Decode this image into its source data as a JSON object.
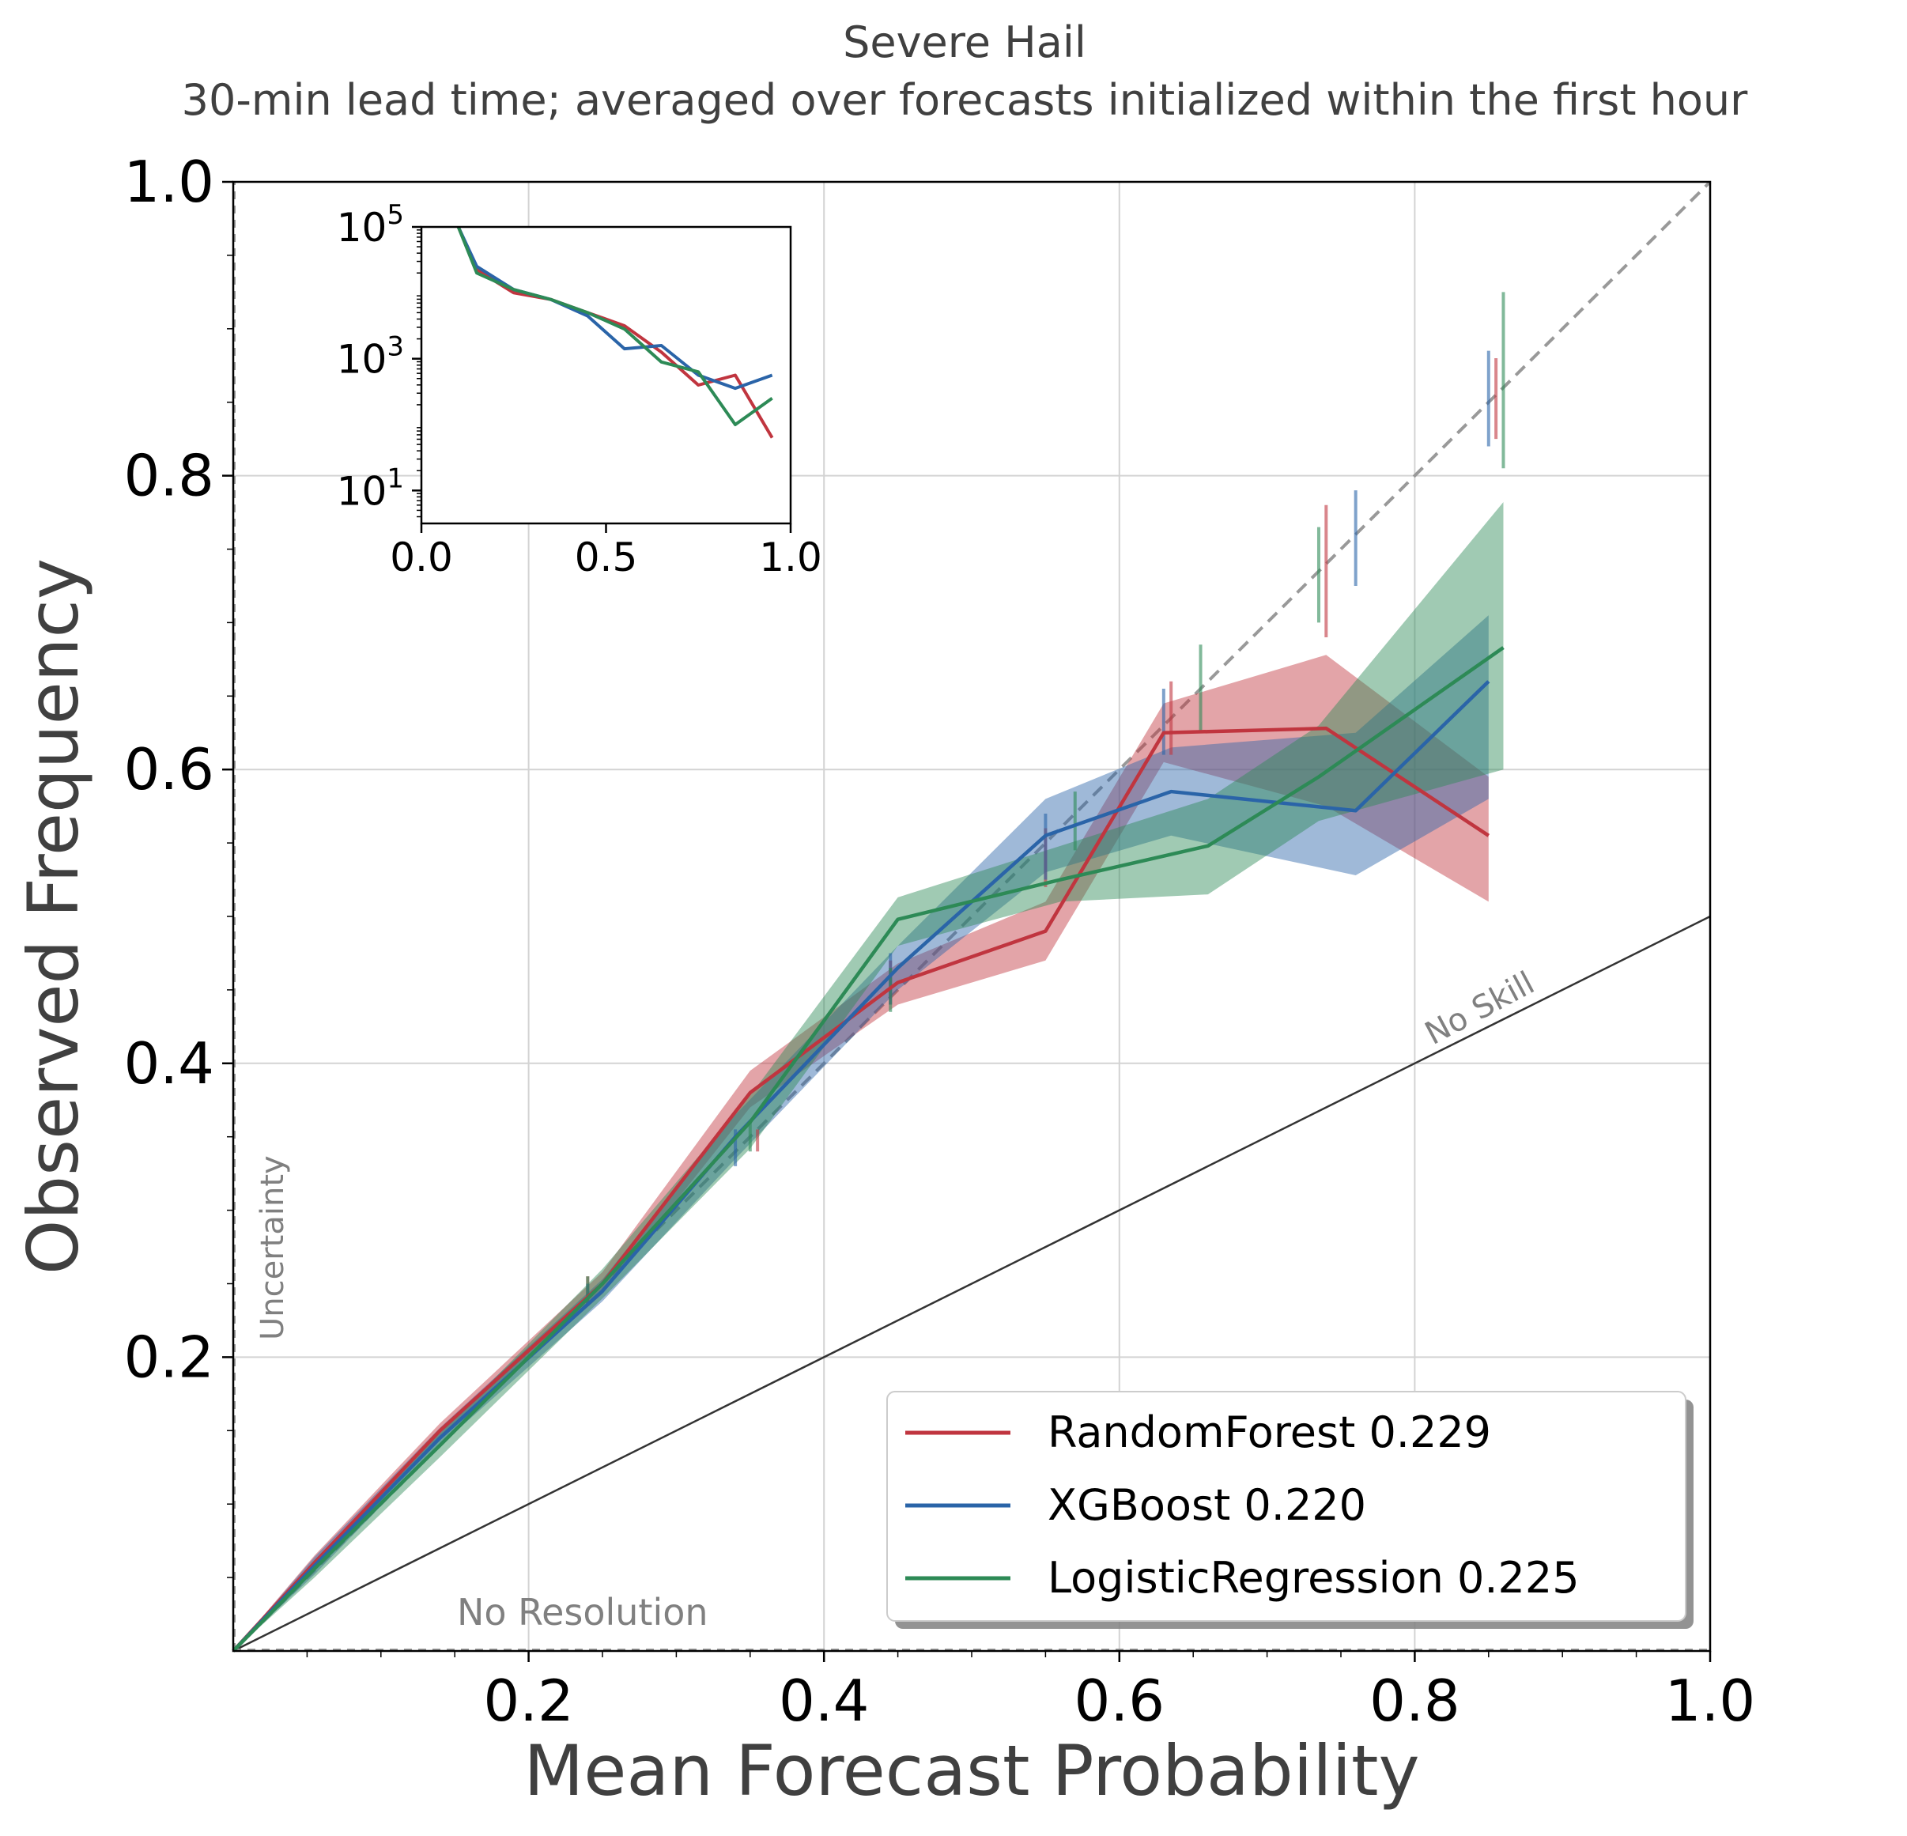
{
  "colors": {
    "random_forest": "#c0353f",
    "xgboost": "#2a64a8",
    "logistic_regression": "#2d8a56",
    "text_dark": "#404040",
    "grid": "#d3d3d3",
    "perfect_line": "#999999",
    "annotation": "#808080"
  },
  "chart_data": [
    {
      "type": "line",
      "title": "Severe Hail",
      "subtitle": "30-min lead time; averaged over forecasts initialized within the first hour",
      "xlabel": "Mean Forecast Probability",
      "ylabel": "Observed Frequency",
      "xlim": [
        0,
        1
      ],
      "ylim": [
        0,
        1
      ],
      "xticks": [
        "0.2",
        "0.4",
        "0.6",
        "0.8",
        "1.0"
      ],
      "yticks": [
        "0.2",
        "0.4",
        "0.6",
        "0.8",
        "1.0"
      ],
      "grid": true,
      "legend_position": "lower-right",
      "annotations": {
        "no_skill": "No Skill",
        "uncertainty": "Uncertainty",
        "no_resolution": "No Resolution"
      },
      "series": [
        {
          "name": "RandomForest 0.229",
          "color_key": "random_forest",
          "x": [
            0.0,
            0.055,
            0.14,
            0.25,
            0.35,
            0.45,
            0.55,
            0.63,
            0.74,
            0.85
          ],
          "y": [
            0.0,
            0.06,
            0.15,
            0.25,
            0.38,
            0.455,
            0.49,
            0.625,
            0.628,
            0.555
          ],
          "lower": [
            0.0,
            0.055,
            0.145,
            0.243,
            0.37,
            0.44,
            0.47,
            0.605,
            0.575,
            0.51
          ],
          "upper": [
            0.0,
            0.065,
            0.155,
            0.258,
            0.395,
            0.468,
            0.51,
            0.645,
            0.678,
            0.595
          ],
          "errbar_x": [
            0.24,
            0.355,
            0.445,
            0.55,
            0.635,
            0.74,
            0.855
          ],
          "errbar_lo": [
            0.235,
            0.34,
            0.44,
            0.52,
            0.61,
            0.69,
            0.825
          ],
          "errbar_hi": [
            0.255,
            0.355,
            0.47,
            0.56,
            0.66,
            0.78,
            0.88
          ]
        },
        {
          "name": "XGBoost 0.220",
          "color_key": "xgboost",
          "x": [
            0.0,
            0.055,
            0.14,
            0.25,
            0.34,
            0.45,
            0.55,
            0.635,
            0.76,
            0.85
          ],
          "y": [
            0.0,
            0.058,
            0.145,
            0.245,
            0.35,
            0.465,
            0.555,
            0.585,
            0.572,
            0.66
          ],
          "lower": [
            0.0,
            0.052,
            0.14,
            0.238,
            0.335,
            0.45,
            0.53,
            0.555,
            0.528,
            0.58
          ],
          "upper": [
            0.0,
            0.064,
            0.152,
            0.253,
            0.365,
            0.48,
            0.58,
            0.615,
            0.625,
            0.705
          ],
          "errbar_x": [
            0.24,
            0.34,
            0.445,
            0.55,
            0.63,
            0.76,
            0.85
          ],
          "errbar_lo": [
            0.235,
            0.33,
            0.44,
            0.525,
            0.61,
            0.725,
            0.82
          ],
          "errbar_hi": [
            0.25,
            0.355,
            0.475,
            0.57,
            0.655,
            0.79,
            0.885
          ]
        },
        {
          "name": "LogisticRegression 0.225",
          "color_key": "logistic_regression",
          "x": [
            0.0,
            0.055,
            0.14,
            0.25,
            0.35,
            0.45,
            0.56,
            0.66,
            0.735,
            0.86
          ],
          "y": [
            0.0,
            0.056,
            0.14,
            0.25,
            0.36,
            0.498,
            0.525,
            0.548,
            0.595,
            0.683
          ],
          "lower": [
            0.0,
            0.05,
            0.132,
            0.24,
            0.342,
            0.48,
            0.51,
            0.515,
            0.565,
            0.6
          ],
          "upper": [
            0.0,
            0.062,
            0.148,
            0.26,
            0.378,
            0.513,
            0.548,
            0.58,
            0.63,
            0.782
          ],
          "errbar_x": [
            0.24,
            0.35,
            0.445,
            0.57,
            0.655,
            0.735,
            0.86
          ],
          "errbar_lo": [
            0.235,
            0.34,
            0.435,
            0.545,
            0.625,
            0.7,
            0.805
          ],
          "errbar_hi": [
            0.255,
            0.36,
            0.465,
            0.585,
            0.685,
            0.765,
            0.925
          ]
        }
      ]
    },
    {
      "type": "line",
      "title": "",
      "xlim": [
        0,
        1
      ],
      "ylim_log10": [
        0.5,
        5
      ],
      "yscale": "log",
      "xticks": [
        "0.0",
        "0.5",
        "1.0"
      ],
      "yticks": [
        {
          "base": "10",
          "exp": "5"
        },
        {
          "base": "10",
          "exp": "3"
        },
        {
          "base": "10",
          "exp": "1"
        }
      ],
      "series": [
        {
          "color_key": "random_forest",
          "x": [
            0.05,
            0.1,
            0.15,
            0.25,
            0.35,
            0.45,
            0.55,
            0.65,
            0.75,
            0.85,
            0.95
          ],
          "log10_y": [
            5.6,
            5.0,
            4.35,
            4.0,
            3.9,
            3.7,
            3.5,
            3.1,
            2.6,
            2.75,
            1.8
          ]
        },
        {
          "color_key": "xgboost",
          "x": [
            0.05,
            0.1,
            0.15,
            0.25,
            0.35,
            0.45,
            0.55,
            0.65,
            0.75,
            0.85,
            0.95
          ],
          "log10_y": [
            5.6,
            5.0,
            4.4,
            4.05,
            3.9,
            3.65,
            3.15,
            3.2,
            2.75,
            2.55,
            2.75
          ]
        },
        {
          "color_key": "logistic_regression",
          "x": [
            0.05,
            0.1,
            0.15,
            0.25,
            0.35,
            0.45,
            0.55,
            0.65,
            0.75,
            0.85,
            0.95
          ],
          "log10_y": [
            5.6,
            5.0,
            4.3,
            4.05,
            3.9,
            3.7,
            3.45,
            2.95,
            2.8,
            2.0,
            2.4
          ]
        }
      ]
    }
  ]
}
